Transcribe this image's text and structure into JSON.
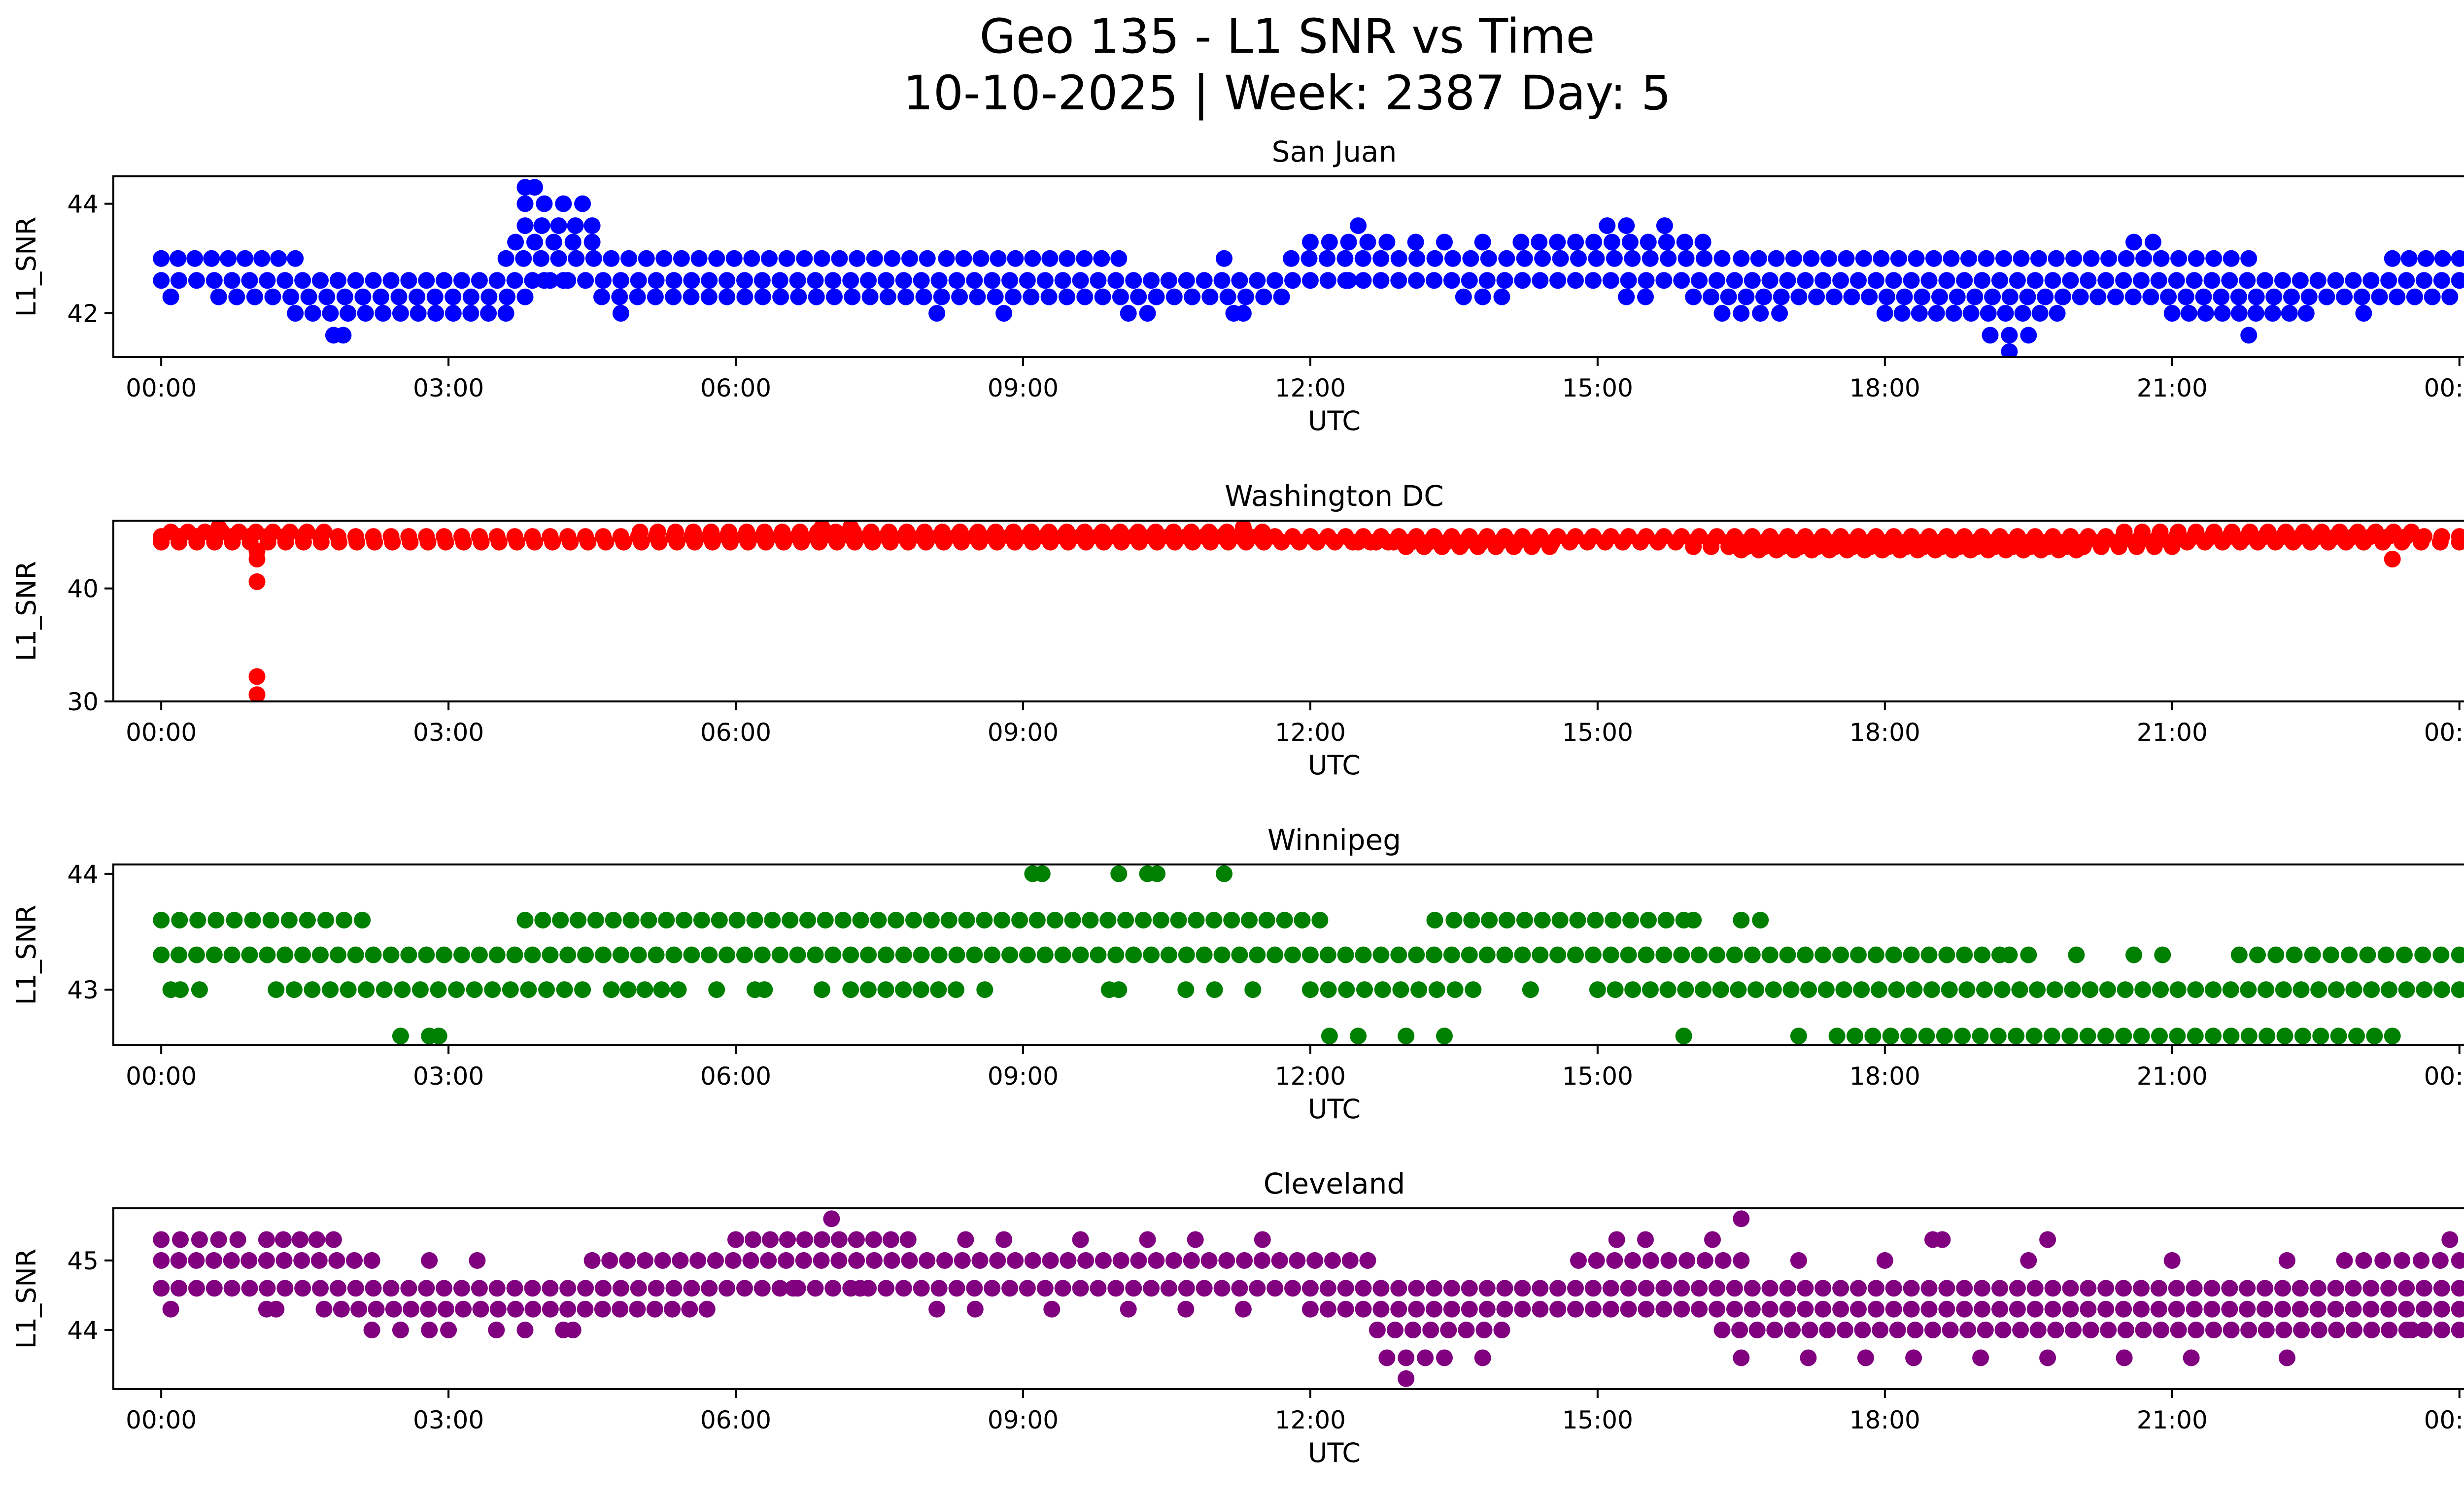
{
  "figure": {
    "title_line1": "Geo 135 - L1 SNR vs Time",
    "title_line2": "10-10-2025 | Week: 2387 Day: 5"
  },
  "chart_data": [
    {
      "type": "scatter",
      "title": "San Juan",
      "xlabel": "UTC",
      "ylabel": "L1_SNR",
      "color": "#0000ff",
      "xlim": [
        -0.5,
        25.0
      ],
      "ylim": [
        41.2,
        44.5
      ],
      "xticks": [
        "00:00",
        "03:00",
        "06:00",
        "09:00",
        "12:00",
        "15:00",
        "18:00",
        "21:00",
        "00:00"
      ],
      "yticks": [
        42,
        44
      ],
      "series": [
        {
          "bands": [
            {
              "y": 42.6,
              "segments": [
                [
                  0.0,
                  24.0
                ]
              ]
            },
            {
              "y": 43.0,
              "segments": [
                [
                  0.0,
                  1.4
                ],
                [
                  3.6,
                  8.0
                ],
                [
                  8.2,
                  10.0
                ],
                [
                  11.8,
                  16.3
                ],
                [
                  16.5,
                  21.8
                ],
                [
                  23.3,
                  24.0
                ]
              ]
            },
            {
              "y": 42.3,
              "segments": [
                [
                  0.6,
                  3.8
                ],
                [
                  4.6,
                  11.7
                ],
                [
                  13.6,
                  14.0
                ],
                [
                  16.0,
                  23.9
                ]
              ]
            },
            {
              "y": 42.0,
              "segments": [
                [
                  1.4,
                  3.6
                ],
                [
                  16.3,
                  16.9
                ],
                [
                  18.0,
                  19.8
                ],
                [
                  21.0,
                  22.4
                ]
              ]
            },
            {
              "y": 43.3,
              "segments": [
                [
                  3.7,
                  4.5
                ],
                [
                  12.0,
                  12.8
                ],
                [
                  14.2,
                  16.1
                ]
              ]
            },
            {
              "y": 43.6,
              "segments": [
                [
                  3.8,
                  4.5
                ]
              ]
            }
          ],
          "points": [
            {
              "x": 0.1,
              "y": 42.3
            },
            {
              "x": 1.8,
              "y": 41.6
            },
            {
              "x": 1.9,
              "y": 41.6
            },
            {
              "x": 3.8,
              "y": 44.3
            },
            {
              "x": 3.9,
              "y": 44.3
            },
            {
              "x": 3.8,
              "y": 44.0
            },
            {
              "x": 4.0,
              "y": 44.0
            },
            {
              "x": 4.2,
              "y": 44.0
            },
            {
              "x": 4.4,
              "y": 44.0
            },
            {
              "x": 4.0,
              "y": 42.6
            },
            {
              "x": 4.2,
              "y": 42.6
            },
            {
              "x": 4.8,
              "y": 42.0
            },
            {
              "x": 8.1,
              "y": 42.0
            },
            {
              "x": 8.8,
              "y": 42.0
            },
            {
              "x": 10.1,
              "y": 42.0
            },
            {
              "x": 10.3,
              "y": 42.0
            },
            {
              "x": 11.1,
              "y": 43.0
            },
            {
              "x": 11.2,
              "y": 42.0
            },
            {
              "x": 11.3,
              "y": 42.0
            },
            {
              "x": 12.5,
              "y": 43.6
            },
            {
              "x": 12.4,
              "y": 42.6
            },
            {
              "x": 13.1,
              "y": 43.3
            },
            {
              "x": 13.4,
              "y": 43.3
            },
            {
              "x": 13.8,
              "y": 43.3
            },
            {
              "x": 15.1,
              "y": 43.6
            },
            {
              "x": 15.3,
              "y": 43.6
            },
            {
              "x": 15.7,
              "y": 43.6
            },
            {
              "x": 15.3,
              "y": 42.3
            },
            {
              "x": 15.5,
              "y": 42.3
            },
            {
              "x": 20.6,
              "y": 43.3
            },
            {
              "x": 20.8,
              "y": 43.3
            },
            {
              "x": 19.1,
              "y": 41.6
            },
            {
              "x": 19.3,
              "y": 41.6
            },
            {
              "x": 19.5,
              "y": 41.6
            },
            {
              "x": 19.3,
              "y": 41.3
            },
            {
              "x": 21.8,
              "y": 41.6
            },
            {
              "x": 23.0,
              "y": 42.0
            }
          ]
        }
      ]
    },
    {
      "type": "scatter",
      "title": "Washington DC",
      "xlabel": "UTC",
      "ylabel": "L1_SNR",
      "color": "#ff0000",
      "xlim": [
        -0.5,
        25.0
      ],
      "ylim": [
        30.0,
        46.0
      ],
      "xticks": [
        "00:00",
        "03:00",
        "06:00",
        "09:00",
        "12:00",
        "15:00",
        "18:00",
        "21:00",
        "00:00"
      ],
      "yticks": [
        30,
        40
      ],
      "series": [
        {
          "bands": [
            {
              "y": 44.6,
              "segments": [
                [
                  0.0,
                  24.0
                ]
              ]
            },
            {
              "y": 44.1,
              "segments": [
                [
                  0.0,
                  13.0
                ],
                [
                  23.0,
                  24.0
                ]
              ]
            },
            {
              "y": 44.1,
              "segments": [
                [
                  12.5,
                  23.0
                ]
              ]
            },
            {
              "y": 45.0,
              "segments": [
                [
                  0.1,
                  1.7
                ],
                [
                  5.0,
                  11.5
                ],
                [
                  20.5,
                  23.5
                ]
              ]
            },
            {
              "y": 43.7,
              "segments": [
                [
                  13.0,
                  14.5
                ],
                [
                  16.0,
                  21.0
                ]
              ]
            },
            {
              "y": 43.4,
              "segments": [
                [
                  16.5,
                  20.0
                ]
              ]
            }
          ],
          "points": [
            {
              "x": 1.0,
              "y": 43.3
            },
            {
              "x": 1.0,
              "y": 42.6
            },
            {
              "x": 1.0,
              "y": 40.6
            },
            {
              "x": 1.0,
              "y": 32.2
            },
            {
              "x": 1.0,
              "y": 30.6
            },
            {
              "x": 23.3,
              "y": 42.6
            },
            {
              "x": 0.6,
              "y": 45.4
            },
            {
              "x": 6.9,
              "y": 45.4
            },
            {
              "x": 7.2,
              "y": 45.4
            },
            {
              "x": 11.3,
              "y": 45.4
            }
          ]
        }
      ]
    },
    {
      "type": "scatter",
      "title": "Winnipeg",
      "xlabel": "UTC",
      "ylabel": "L1_SNR",
      "color": "#008000",
      "xlim": [
        -0.5,
        25.0
      ],
      "ylim": [
        42.52,
        44.08
      ],
      "xticks": [
        "00:00",
        "03:00",
        "06:00",
        "09:00",
        "12:00",
        "15:00",
        "18:00",
        "21:00",
        "00:00"
      ],
      "yticks": [
        43,
        44
      ],
      "series": [
        {
          "bands": [
            {
              "y": 43.3,
              "segments": [
                [
                  0.0,
                  19.2
                ],
                [
                  21.7,
                  24.0
                ]
              ]
            },
            {
              "y": 43.6,
              "segments": [
                [
                  0.0,
                  2.1
                ],
                [
                  3.8,
                  12.1
                ],
                [
                  13.5,
                  15.9
                ]
              ]
            },
            {
              "y": 43.0,
              "segments": [
                [
                  1.2,
                  4.4
                ],
                [
                  4.7,
                  5.4
                ],
                [
                  7.2,
                  8.3
                ],
                [
                  12.0,
                  13.7
                ],
                [
                  15.0,
                  24.0
                ]
              ]
            },
            {
              "y": 42.6,
              "segments": [
                [
                  17.5,
                  23.3
                ]
              ]
            }
          ],
          "points": [
            {
              "x": 9.1,
              "y": 44.0
            },
            {
              "x": 9.2,
              "y": 44.0
            },
            {
              "x": 10.0,
              "y": 44.0
            },
            {
              "x": 10.3,
              "y": 44.0
            },
            {
              "x": 10.4,
              "y": 44.0
            },
            {
              "x": 11.1,
              "y": 44.0
            },
            {
              "x": 2.5,
              "y": 42.6
            },
            {
              "x": 2.8,
              "y": 42.6
            },
            {
              "x": 2.9,
              "y": 42.6
            },
            {
              "x": 12.2,
              "y": 42.6
            },
            {
              "x": 12.5,
              "y": 42.6
            },
            {
              "x": 13.0,
              "y": 42.6
            },
            {
              "x": 13.4,
              "y": 42.6
            },
            {
              "x": 15.9,
              "y": 42.6
            },
            {
              "x": 17.1,
              "y": 42.6
            },
            {
              "x": 0.1,
              "y": 43.0
            },
            {
              "x": 0.2,
              "y": 43.0
            },
            {
              "x": 0.4,
              "y": 43.0
            },
            {
              "x": 5.8,
              "y": 43.0
            },
            {
              "x": 6.2,
              "y": 43.0
            },
            {
              "x": 6.3,
              "y": 43.0
            },
            {
              "x": 6.9,
              "y": 43.0
            },
            {
              "x": 8.6,
              "y": 43.0
            },
            {
              "x": 9.9,
              "y": 43.0
            },
            {
              "x": 10.0,
              "y": 43.0
            },
            {
              "x": 10.7,
              "y": 43.0
            },
            {
              "x": 11.0,
              "y": 43.0
            },
            {
              "x": 11.4,
              "y": 43.0
            },
            {
              "x": 14.3,
              "y": 43.0
            },
            {
              "x": 19.3,
              "y": 43.3
            },
            {
              "x": 19.5,
              "y": 43.3
            },
            {
              "x": 20.0,
              "y": 43.3
            },
            {
              "x": 20.6,
              "y": 43.3
            },
            {
              "x": 20.9,
              "y": 43.3
            },
            {
              "x": 16.5,
              "y": 43.6
            },
            {
              "x": 16.7,
              "y": 43.6
            },
            {
              "x": 13.3,
              "y": 43.6
            },
            {
              "x": 16.0,
              "y": 43.6
            }
          ]
        }
      ]
    },
    {
      "type": "scatter",
      "title": "Cleveland",
      "xlabel": "UTC",
      "ylabel": "L1_SNR",
      "color": "#800080",
      "xlim": [
        -0.5,
        25.0
      ],
      "ylim": [
        43.15,
        45.75
      ],
      "xticks": [
        "00:00",
        "03:00",
        "06:00",
        "09:00",
        "12:00",
        "15:00",
        "18:00",
        "21:00",
        "00:00"
      ],
      "yticks": [
        44,
        45
      ],
      "series": [
        {
          "bands": [
            {
              "y": 44.6,
              "segments": [
                [
                  0.0,
                  24.0
                ]
              ]
            },
            {
              "y": 44.3,
              "segments": [
                [
                  1.7,
                  5.7
                ],
                [
                  12.0,
                  24.0
                ]
              ]
            },
            {
              "y": 45.0,
              "segments": [
                [
                  0.0,
                  2.2
                ],
                [
                  4.5,
                  12.6
                ],
                [
                  14.8,
                  16.5
                ],
                [
                  22.8,
                  24.0
                ]
              ]
            },
            {
              "y": 45.3,
              "segments": [
                [
                  0.0,
                  0.8
                ],
                [
                  1.1,
                  1.8
                ],
                [
                  6.0,
                  7.8
                ]
              ]
            },
            {
              "y": 44.0,
              "segments": [
                [
                  12.7,
                  14.0
                ],
                [
                  16.3,
                  24.0
                ]
              ]
            },
            {
              "y": 43.6,
              "segments": [
                [
                  12.8,
                  13.4
                ]
              ]
            }
          ],
          "points": [
            {
              "x": 0.1,
              "y": 44.3
            },
            {
              "x": 1.1,
              "y": 44.3
            },
            {
              "x": 1.2,
              "y": 44.3
            },
            {
              "x": 7.0,
              "y": 45.6
            },
            {
              "x": 16.5,
              "y": 45.6
            },
            {
              "x": 13.0,
              "y": 43.3
            },
            {
              "x": 2.2,
              "y": 44.0
            },
            {
              "x": 2.5,
              "y": 44.0
            },
            {
              "x": 2.8,
              "y": 44.0
            },
            {
              "x": 3.0,
              "y": 44.0
            },
            {
              "x": 3.5,
              "y": 44.0
            },
            {
              "x": 3.8,
              "y": 44.0
            },
            {
              "x": 4.2,
              "y": 44.0
            },
            {
              "x": 4.3,
              "y": 44.0
            },
            {
              "x": 5.7,
              "y": 44.3
            },
            {
              "x": 8.1,
              "y": 44.3
            },
            {
              "x": 8.5,
              "y": 44.3
            },
            {
              "x": 9.3,
              "y": 44.3
            },
            {
              "x": 10.1,
              "y": 44.3
            },
            {
              "x": 10.7,
              "y": 44.3
            },
            {
              "x": 11.3,
              "y": 44.3
            },
            {
              "x": 7.3,
              "y": 44.6
            },
            {
              "x": 6.6,
              "y": 44.6
            },
            {
              "x": 15.2,
              "y": 45.3
            },
            {
              "x": 15.5,
              "y": 45.3
            },
            {
              "x": 16.2,
              "y": 45.3
            },
            {
              "x": 18.5,
              "y": 45.3
            },
            {
              "x": 18.6,
              "y": 45.3
            },
            {
              "x": 19.7,
              "y": 45.3
            },
            {
              "x": 23.9,
              "y": 45.3
            },
            {
              "x": 8.4,
              "y": 45.3
            },
            {
              "x": 8.8,
              "y": 45.3
            },
            {
              "x": 9.6,
              "y": 45.3
            },
            {
              "x": 10.3,
              "y": 45.3
            },
            {
              "x": 10.8,
              "y": 45.3
            },
            {
              "x": 11.5,
              "y": 45.3
            },
            {
              "x": 2.8,
              "y": 45.0
            },
            {
              "x": 3.3,
              "y": 45.0
            },
            {
              "x": 17.1,
              "y": 45.0
            },
            {
              "x": 18.0,
              "y": 45.0
            },
            {
              "x": 19.5,
              "y": 45.0
            },
            {
              "x": 21.0,
              "y": 45.0
            },
            {
              "x": 22.2,
              "y": 45.0
            },
            {
              "x": 16.5,
              "y": 43.6
            },
            {
              "x": 17.2,
              "y": 43.6
            },
            {
              "x": 17.8,
              "y": 43.6
            },
            {
              "x": 18.3,
              "y": 43.6
            },
            {
              "x": 19.0,
              "y": 43.6
            },
            {
              "x": 19.7,
              "y": 43.6
            },
            {
              "x": 20.5,
              "y": 43.6
            },
            {
              "x": 21.2,
              "y": 43.6
            },
            {
              "x": 22.2,
              "y": 43.6
            },
            {
              "x": 13.8,
              "y": 43.6
            },
            {
              "x": 23.5,
              "y": 44.0
            }
          ]
        }
      ]
    }
  ]
}
